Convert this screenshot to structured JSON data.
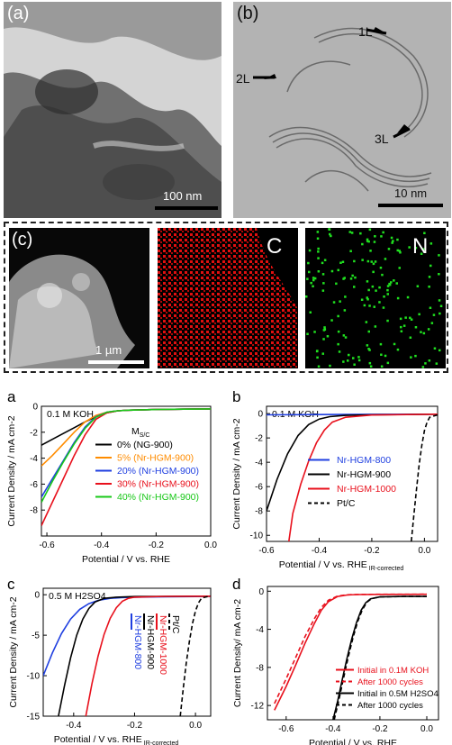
{
  "top": {
    "a": {
      "label": "(a)",
      "scale": "100 nm"
    },
    "b": {
      "label": "(b)",
      "scale": "10 nm",
      "layers": [
        "1L",
        "2L",
        "3L"
      ]
    },
    "c": {
      "label": "(c)",
      "scale": "1 µm",
      "map_c": "C",
      "map_n": "N"
    }
  },
  "colors": {
    "black": "#000000",
    "orange": "#ff8c00",
    "blue": "#1f3fe0",
    "red": "#e8101c",
    "green": "#18c818"
  },
  "chart_data": [
    {
      "panel": "a",
      "type": "line",
      "annotation": "0.1 M KOH",
      "legend_title": "M_S/C",
      "xlabel": "Potential / V vs. RHE",
      "ylabel": "Current Density / mA cm-2",
      "xlim": [
        -0.62,
        0.0
      ],
      "ylim": [
        -10,
        0
      ],
      "xticks": [
        "-0.6",
        "-0.4",
        "-0.2",
        "0.0"
      ],
      "yticks": [
        "-8",
        "-6",
        "-4",
        "-2",
        "0"
      ],
      "series": [
        {
          "name": "0% (NG-900)",
          "color": "black",
          "x": [
            -0.62,
            -0.58,
            -0.54,
            -0.5,
            -0.46,
            -0.42,
            -0.38,
            -0.34,
            -0.3,
            -0.2,
            -0.1,
            0.0
          ],
          "y": [
            -3.0,
            -2.55,
            -2.1,
            -1.65,
            -1.2,
            -0.8,
            -0.5,
            -0.35,
            -0.3,
            -0.25,
            -0.22,
            -0.2
          ]
        },
        {
          "name": "5% (Nr-HGM-900)",
          "color": "orange",
          "x": [
            -0.62,
            -0.58,
            -0.54,
            -0.5,
            -0.46,
            -0.42,
            -0.38,
            -0.34,
            -0.3,
            -0.2,
            -0.1,
            0.0
          ],
          "y": [
            -4.6,
            -3.8,
            -2.9,
            -2.0,
            -1.2,
            -0.7,
            -0.45,
            -0.35,
            -0.3,
            -0.25,
            -0.22,
            -0.2
          ]
        },
        {
          "name": "20% (Nr-HGM-900)",
          "color": "blue",
          "x": [
            -0.62,
            -0.58,
            -0.54,
            -0.5,
            -0.46,
            -0.42,
            -0.38,
            -0.34,
            -0.3,
            -0.2,
            -0.1,
            0.0
          ],
          "y": [
            -7.0,
            -5.6,
            -4.2,
            -2.8,
            -1.6,
            -0.8,
            -0.45,
            -0.35,
            -0.3,
            -0.25,
            -0.22,
            -0.2
          ]
        },
        {
          "name": "30% (Nr-HGM-900)",
          "color": "red",
          "x": [
            -0.62,
            -0.58,
            -0.54,
            -0.5,
            -0.46,
            -0.42,
            -0.38,
            -0.34,
            -0.3,
            -0.2,
            -0.1,
            0.0
          ],
          "y": [
            -9.2,
            -7.4,
            -5.6,
            -3.8,
            -2.2,
            -1.0,
            -0.5,
            -0.35,
            -0.3,
            -0.25,
            -0.22,
            -0.2
          ]
        },
        {
          "name": "40% (Nr-HGM-900)",
          "color": "green",
          "x": [
            -0.62,
            -0.58,
            -0.54,
            -0.5,
            -0.46,
            -0.42,
            -0.38,
            -0.34,
            -0.3,
            -0.2,
            -0.1,
            0.0
          ],
          "y": [
            -7.4,
            -5.8,
            -4.3,
            -2.9,
            -1.7,
            -0.85,
            -0.45,
            -0.35,
            -0.3,
            -0.25,
            -0.22,
            -0.2
          ]
        }
      ]
    },
    {
      "panel": "b",
      "type": "line",
      "annotation": "0.1 M KOH",
      "xlabel": "Potential / V vs. RHE",
      "xlabel_sub": "IR-corrected",
      "ylabel": "Current Density / mA cm-2",
      "xlim": [
        -0.6,
        0.05
      ],
      "ylim": [
        -10.5,
        0.6
      ],
      "xticks": [
        "-0.6",
        "-0.4",
        "-0.2",
        "0.0"
      ],
      "yticks": [
        "0",
        "-2",
        "-4",
        "-6",
        "-8",
        "-10"
      ],
      "series": [
        {
          "name": "Nr-HGM-800",
          "color": "blue",
          "x": [
            -0.6,
            -0.4,
            -0.2,
            0.0,
            0.05
          ],
          "y": [
            -0.1,
            -0.08,
            -0.06,
            -0.05,
            -0.05
          ]
        },
        {
          "name": "Nr-HGM-900",
          "color": "black",
          "x": [
            -0.6,
            -0.56,
            -0.52,
            -0.48,
            -0.44,
            -0.4,
            -0.36,
            -0.3,
            -0.2,
            0.0,
            0.05
          ],
          "y": [
            -8.0,
            -5.4,
            -3.3,
            -1.8,
            -0.9,
            -0.45,
            -0.25,
            -0.15,
            -0.1,
            -0.06,
            -0.05
          ]
        },
        {
          "name": "Nr-HGM-1000",
          "color": "red",
          "x": [
            -0.515,
            -0.5,
            -0.47,
            -0.44,
            -0.41,
            -0.38,
            -0.35,
            -0.3,
            -0.2,
            0.0,
            0.05
          ],
          "y": [
            -10.5,
            -8.2,
            -5.8,
            -3.9,
            -2.4,
            -1.35,
            -0.7,
            -0.3,
            -0.12,
            -0.06,
            -0.05
          ]
        },
        {
          "name": "Pt/C",
          "color": "black",
          "dashed": true,
          "x": [
            -0.05,
            -0.04,
            -0.03,
            -0.02,
            -0.01,
            0.0,
            0.01,
            0.02,
            0.05
          ],
          "y": [
            -10.5,
            -8.3,
            -6.2,
            -4.2,
            -2.6,
            -1.4,
            -0.7,
            -0.3,
            -0.1
          ]
        }
      ]
    },
    {
      "panel": "c",
      "type": "line",
      "annotation": "0.5 M H2SO4",
      "xlabel": "Potential / V vs. RHE",
      "xlabel_sub": "IR-corrected",
      "ylabel": "Current Density / mA cm-2",
      "xlim": [
        -0.5,
        0.05
      ],
      "ylim": [
        -15,
        0.8
      ],
      "xticks": [
        "-0.4",
        "-0.2",
        "0.0"
      ],
      "yticks": [
        "0",
        "-5",
        "-10",
        "-15"
      ],
      "series": [
        {
          "name": "Nr-HGM-800",
          "color": "blue",
          "x": [
            -0.5,
            -0.47,
            -0.44,
            -0.41,
            -0.38,
            -0.35,
            -0.32,
            -0.28,
            -0.24,
            -0.2,
            -0.1,
            0.0,
            0.05
          ],
          "y": [
            -10.0,
            -7.2,
            -4.8,
            -3.0,
            -1.8,
            -1.1,
            -0.7,
            -0.45,
            -0.35,
            -0.3,
            -0.25,
            -0.22,
            -0.2
          ]
        },
        {
          "name": "Nr-HGM-900",
          "color": "black",
          "x": [
            -0.45,
            -0.43,
            -0.41,
            -0.39,
            -0.37,
            -0.35,
            -0.33,
            -0.3,
            -0.26,
            -0.2,
            -0.1,
            0.05
          ],
          "y": [
            -15.0,
            -11.2,
            -7.8,
            -5.0,
            -3.0,
            -1.7,
            -0.9,
            -0.45,
            -0.3,
            -0.22,
            -0.2,
            -0.18
          ]
        },
        {
          "name": "Nr-HGM-1000",
          "color": "red",
          "x": [
            -0.36,
            -0.34,
            -0.32,
            -0.3,
            -0.28,
            -0.26,
            -0.24,
            -0.22,
            -0.2,
            -0.1,
            0.05
          ],
          "y": [
            -15.0,
            -11.0,
            -7.6,
            -4.9,
            -2.9,
            -1.6,
            -0.8,
            -0.45,
            -0.3,
            -0.2,
            -0.18
          ]
        },
        {
          "name": "Pt/C",
          "color": "black",
          "dashed": true,
          "x": [
            -0.05,
            -0.04,
            -0.03,
            -0.02,
            -0.01,
            0.0,
            0.01,
            0.02,
            0.05
          ],
          "y": [
            -15.0,
            -11.5,
            -8.4,
            -5.8,
            -3.6,
            -2.0,
            -1.0,
            -0.4,
            -0.15
          ]
        }
      ]
    },
    {
      "panel": "d",
      "type": "line",
      "xlabel": "Potential / V vs. RHE",
      "ylabel": "Current Density/ mA cm-2",
      "xlim": [
        -0.68,
        0.05
      ],
      "ylim": [
        -13.5,
        0.5
      ],
      "xticks": [
        "-0.6",
        "-0.4",
        "-0.2",
        "0.0"
      ],
      "yticks": [
        "0",
        "-4",
        "-8",
        "-12"
      ],
      "series": [
        {
          "name": "Initial in 0.1M KOH",
          "color": "red",
          "x": [
            -0.65,
            -0.6,
            -0.56,
            -0.52,
            -0.48,
            -0.45,
            -0.42,
            -0.38,
            -0.34,
            -0.3,
            -0.2,
            0.0
          ],
          "y": [
            -12.5,
            -10.0,
            -7.8,
            -5.5,
            -3.4,
            -2.0,
            -1.1,
            -0.55,
            -0.4,
            -0.35,
            -0.33,
            -0.32
          ]
        },
        {
          "name": "After 1000 cycles",
          "color": "red",
          "dashed": true,
          "x": [
            -0.65,
            -0.6,
            -0.56,
            -0.52,
            -0.48,
            -0.45,
            -0.42,
            -0.38,
            -0.34,
            -0.3,
            -0.2,
            0.0
          ],
          "y": [
            -11.8,
            -9.2,
            -7.0,
            -4.8,
            -2.9,
            -1.7,
            -0.95,
            -0.5,
            -0.38,
            -0.34,
            -0.32,
            -0.31
          ]
        },
        {
          "name": "Initial in 0.5M H2SO4",
          "color": "black",
          "x": [
            -0.4,
            -0.38,
            -0.36,
            -0.34,
            -0.32,
            -0.3,
            -0.28,
            -0.26,
            -0.24,
            -0.2,
            -0.1,
            0.0
          ],
          "y": [
            -13.5,
            -11.5,
            -9.2,
            -7.0,
            -5.0,
            -3.3,
            -2.0,
            -1.2,
            -0.8,
            -0.6,
            -0.55,
            -0.55
          ]
        },
        {
          "name": "After 1000 cycles",
          "color": "black",
          "dashed": true,
          "x": [
            -0.395,
            -0.375,
            -0.355,
            -0.335,
            -0.315,
            -0.295,
            -0.275,
            -0.255,
            -0.235,
            -0.2,
            -0.1,
            0.0
          ],
          "y": [
            -13.5,
            -11.4,
            -9.1,
            -6.9,
            -4.9,
            -3.2,
            -1.95,
            -1.15,
            -0.78,
            -0.6,
            -0.55,
            -0.55
          ]
        }
      ]
    }
  ]
}
